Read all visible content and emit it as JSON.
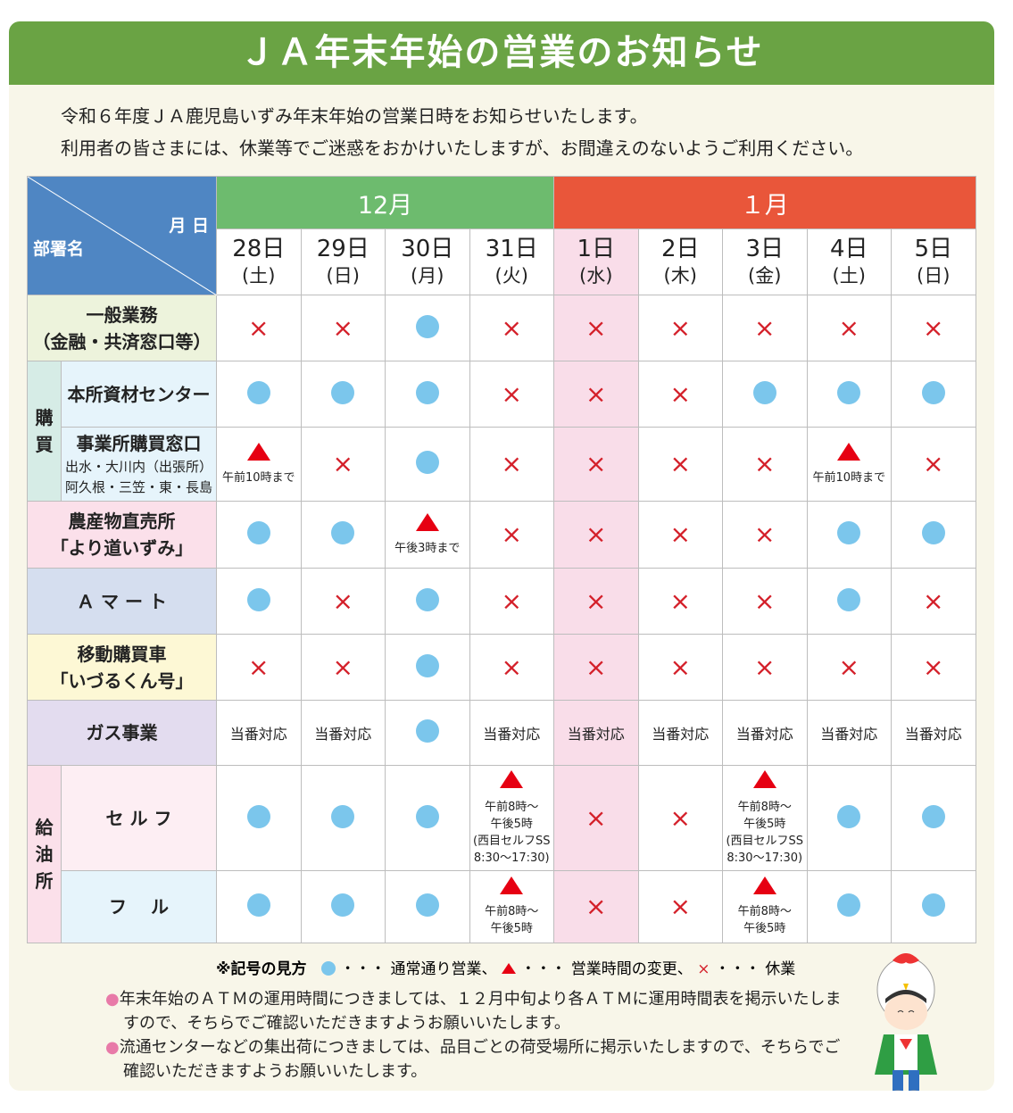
{
  "title": "ＪＡ年末年始の営業のお知らせ",
  "intro": [
    "令和６年度ＪＡ鹿児島いずみ年末年始の営業日時をお知らせいたします。",
    "利用者の皆さまには、休業等でご迷惑をおかけいたしますが、お間違えのないようご利用ください。"
  ],
  "corner": {
    "month_day": "月 日",
    "dept": "部署名"
  },
  "months": [
    {
      "label": "12月",
      "color": "#6dbb6e"
    },
    {
      "label": "１月",
      "color": "#e9563a"
    }
  ],
  "days": [
    {
      "d": "28日",
      "w": "(土)"
    },
    {
      "d": "29日",
      "w": "(日)"
    },
    {
      "d": "30日",
      "w": "(月)"
    },
    {
      "d": "31日",
      "w": "(火)"
    },
    {
      "d": "1日",
      "w": "(水)"
    },
    {
      "d": "2日",
      "w": "(木)"
    },
    {
      "d": "3日",
      "w": "(金)"
    },
    {
      "d": "4日",
      "w": "(土)"
    },
    {
      "d": "5日",
      "w": "(日)"
    }
  ],
  "groups": {
    "kobai": "購\n買",
    "kyuyu": "給\n油\n所"
  },
  "rows": [
    {
      "label": "一般業務",
      "sub": "（金融・共済窓口等）",
      "bg": "#edf3dc",
      "cells": [
        {
          "s": "x"
        },
        {
          "s": "x"
        },
        {
          "s": "o"
        },
        {
          "s": "x"
        },
        {
          "s": "x"
        },
        {
          "s": "x"
        },
        {
          "s": "x"
        },
        {
          "s": "x"
        },
        {
          "s": "x"
        }
      ]
    },
    {
      "label": "本所資材センター",
      "bg": "#e6f4fb",
      "cells": [
        {
          "s": "o"
        },
        {
          "s": "o"
        },
        {
          "s": "o"
        },
        {
          "s": "x"
        },
        {
          "s": "x"
        },
        {
          "s": "x"
        },
        {
          "s": "o"
        },
        {
          "s": "o"
        },
        {
          "s": "o"
        }
      ]
    },
    {
      "label": "事業所購買窓口",
      "sub": "出水・大川内（出張所）",
      "sub2": "阿久根・三笠・東・長島",
      "bg": "#e6f4fb",
      "cells": [
        {
          "s": "t",
          "note": "午前10時まで"
        },
        {
          "s": "x"
        },
        {
          "s": "o"
        },
        {
          "s": "x"
        },
        {
          "s": "x"
        },
        {
          "s": "x"
        },
        {
          "s": "x"
        },
        {
          "s": "t",
          "note": "午前10時まで"
        },
        {
          "s": "x"
        }
      ]
    },
    {
      "label": "農産物直売所",
      "sub": "「より道いずみ」",
      "bg": "#fbe0ea",
      "cells": [
        {
          "s": "o"
        },
        {
          "s": "o"
        },
        {
          "s": "t",
          "note": "午後3時まで"
        },
        {
          "s": "x"
        },
        {
          "s": "x"
        },
        {
          "s": "x"
        },
        {
          "s": "x"
        },
        {
          "s": "o"
        },
        {
          "s": "o"
        }
      ]
    },
    {
      "label": "Ａ マ ー ト",
      "bg": "#d5deef",
      "cells": [
        {
          "s": "o"
        },
        {
          "s": "x"
        },
        {
          "s": "o"
        },
        {
          "s": "x"
        },
        {
          "s": "x"
        },
        {
          "s": "x"
        },
        {
          "s": "x"
        },
        {
          "s": "o"
        },
        {
          "s": "x"
        }
      ]
    },
    {
      "label": "移動購買車",
      "sub": "「いづるくん号」",
      "bg": "#fdf8d5",
      "cells": [
        {
          "s": "x"
        },
        {
          "s": "x"
        },
        {
          "s": "o"
        },
        {
          "s": "x"
        },
        {
          "s": "x"
        },
        {
          "s": "x"
        },
        {
          "s": "x"
        },
        {
          "s": "x"
        },
        {
          "s": "x"
        }
      ]
    },
    {
      "label": "ガス事業",
      "bg": "#e3dcef",
      "cells": [
        {
          "s": "text",
          "note": "当番対応"
        },
        {
          "s": "text",
          "note": "当番対応"
        },
        {
          "s": "o"
        },
        {
          "s": "text",
          "note": "当番対応"
        },
        {
          "s": "text",
          "note": "当番対応"
        },
        {
          "s": "text",
          "note": "当番対応"
        },
        {
          "s": "text",
          "note": "当番対応"
        },
        {
          "s": "text",
          "note": "当番対応"
        },
        {
          "s": "text",
          "note": "当番対応"
        }
      ]
    },
    {
      "label": "セ ル フ",
      "bg": "#fdeef3",
      "cells": [
        {
          "s": "o"
        },
        {
          "s": "o"
        },
        {
          "s": "o"
        },
        {
          "s": "t",
          "note": "午前8時～\n午後5時\n(西目セルフSS\n8:30～17:30)"
        },
        {
          "s": "x"
        },
        {
          "s": "x"
        },
        {
          "s": "t",
          "note": "午前8時～\n午後5時\n(西目セルフSS\n8:30～17:30)"
        },
        {
          "s": "o"
        },
        {
          "s": "o"
        }
      ]
    },
    {
      "label": "フ　 ル",
      "bg": "#e6f4fb",
      "cells": [
        {
          "s": "o"
        },
        {
          "s": "o"
        },
        {
          "s": "o"
        },
        {
          "s": "t",
          "note": "午前8時～\n午後5時"
        },
        {
          "s": "x"
        },
        {
          "s": "x"
        },
        {
          "s": "t",
          "note": "午前8時～\n午後5時"
        },
        {
          "s": "o"
        },
        {
          "s": "o"
        }
      ]
    }
  ],
  "legend": {
    "title": "※記号の見方",
    "normal": "・・・ 通常通り営業、",
    "changed": "・・・ 営業時間の変更、",
    "closed": "・・・ 休業"
  },
  "notes": [
    "年末年始のＡＴＭの運用時間につきましては、１２月中旬より各ＡＴＭに運用時間表を掲示いたしますので、そちらでご確認いただきますようお願いいたします。",
    "流通センターなどの集出荷につきましては、品目ごとの荷受場所に掲示いたしますので、そちらでご確認いただきますようお願いいたします。"
  ],
  "colors": {
    "header": "#6aa344",
    "open": "#7bc6ec",
    "changed": "#e60012",
    "closed": "#d4202a",
    "holiday_column": "#f9dde9"
  },
  "icons": {
    "open": "circle",
    "changed": "triangle",
    "closed": "cross"
  }
}
